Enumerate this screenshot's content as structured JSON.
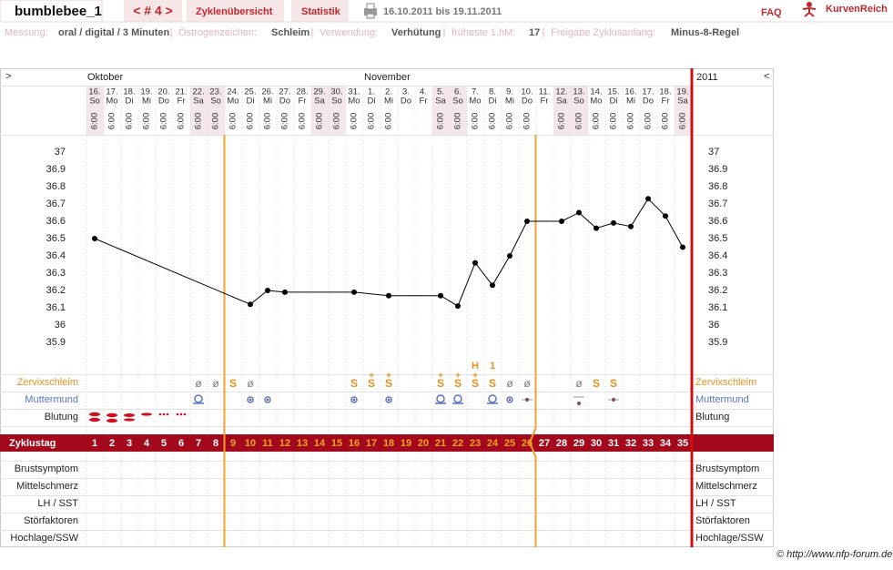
{
  "header": {
    "user": "bumblebee_1",
    "cycle_nav": "< # 4 >",
    "tabs": [
      "Zyklenübersicht",
      "Statistik"
    ],
    "date_range": "16.10.2011 bis 19.11.2011",
    "faq": "FAQ",
    "logo": "KurvenReich"
  },
  "info": [
    {
      "label": "Messung:",
      "value": "oral / digital / 3 Minuten"
    },
    {
      "label": "Östrogenzeichen:",
      "value": "Schleim"
    },
    {
      "label": "Verwendung:",
      "value": "Verhütung"
    },
    {
      "label": "früheste 1.hM:",
      "value": "17"
    },
    {
      "label": "Freigabe Zyklusanfang:",
      "value": "Minus-8-Regel"
    }
  ],
  "chart_data": {
    "type": "line",
    "nav_left": ">",
    "nav_right": "<",
    "months": [
      "Oktober",
      "November"
    ],
    "year": "2011",
    "dates": [
      "16.",
      "17.",
      "18.",
      "19.",
      "20.",
      "21.",
      "22.",
      "23.",
      "24.",
      "25.",
      "26.",
      "27.",
      "28.",
      "29.",
      "30.",
      "31.",
      "1.",
      "2.",
      "3.",
      "4.",
      "5.",
      "6.",
      "7.",
      "8.",
      "9.",
      "10.",
      "11.",
      "12.",
      "13.",
      "14.",
      "15.",
      "16.",
      "17.",
      "18.",
      "19."
    ],
    "weekdays": [
      "So",
      "Mo",
      "Di",
      "Mi",
      "Do",
      "Fr",
      "Sa",
      "So",
      "Mo",
      "Di",
      "Mi",
      "Do",
      "Fr",
      "Sa",
      "So",
      "Mo",
      "Di",
      "Mi",
      "Do",
      "Fr",
      "Sa",
      "So",
      "Mo",
      "Di",
      "Mi",
      "Do",
      "Fr",
      "Sa",
      "So",
      "Mo",
      "Di",
      "Mi",
      "Do",
      "Fr",
      "Sa"
    ],
    "times": [
      "6:00",
      "6:00",
      "6:00",
      "6:00",
      "6:00",
      "6:00",
      "6:00",
      "6:00",
      "6:00",
      "6:00",
      "6:00",
      "6:00",
      "6:00",
      "6:00",
      "6:00",
      "6:00",
      "6:00",
      "6:00",
      null,
      null,
      "6:00",
      "6:00",
      "6:00",
      "6:00",
      "6:00",
      "6:00",
      null,
      "6:00",
      "6:00",
      "6:00",
      "6:00",
      "6:00",
      "6:00",
      "6:00",
      "6:00"
    ],
    "x": [
      1,
      10,
      11,
      12,
      16,
      18,
      21,
      22,
      23,
      24,
      25,
      26,
      28,
      29,
      30,
      31,
      32,
      33,
      34,
      35
    ],
    "values": [
      36.5,
      36.12,
      36.2,
      36.19,
      36.19,
      36.17,
      36.17,
      36.11,
      36.36,
      36.23,
      36.4,
      36.6,
      36.6,
      36.65,
      36.56,
      36.59,
      36.57,
      36.73,
      36.63,
      36.45
    ],
    "color": "#000000",
    "ylim": [
      35.9,
      37
    ],
    "yticks": [
      37,
      36.9,
      36.8,
      36.7,
      36.6,
      36.5,
      36.4,
      36.3,
      36.2,
      36.1,
      36,
      35.9
    ],
    "rows_top": [
      "Zervixschleim",
      "Muttermund",
      "Blutung"
    ],
    "cycle_day_label": "Zyklustag",
    "cycle_days": [
      1,
      2,
      3,
      4,
      5,
      6,
      7,
      8,
      9,
      10,
      11,
      12,
      13,
      14,
      15,
      16,
      17,
      18,
      19,
      20,
      21,
      22,
      23,
      24,
      25,
      26,
      27,
      28,
      29,
      30,
      31,
      32,
      33,
      34,
      35
    ],
    "rows_bottom": [
      "Brustsymptom",
      "Mittelschmerz",
      "LH / SST",
      "Störfaktoren",
      "Hochlage/SSW"
    ],
    "mucus": [
      null,
      null,
      null,
      null,
      null,
      null,
      "ø",
      "ø",
      "S",
      "ø",
      null,
      null,
      null,
      null,
      null,
      "S",
      "S",
      "S",
      null,
      null,
      "S",
      "S",
      "S",
      "S",
      "ø",
      "ø",
      null,
      null,
      "ø",
      "S",
      "S",
      null,
      null,
      null,
      null
    ],
    "mucus_plus": [
      null,
      null,
      null,
      null,
      null,
      null,
      null,
      null,
      null,
      null,
      null,
      null,
      null,
      null,
      null,
      null,
      "+",
      "+",
      null,
      null,
      "+",
      "+",
      "+",
      null,
      null,
      null,
      null,
      null,
      null,
      null,
      null,
      null,
      null,
      null,
      null
    ],
    "peak": [
      null,
      null,
      null,
      null,
      null,
      null,
      null,
      null,
      null,
      null,
      null,
      null,
      null,
      null,
      null,
      null,
      null,
      null,
      null,
      null,
      null,
      null,
      "H",
      "1",
      null,
      null,
      null,
      null,
      null,
      null,
      null,
      null,
      null,
      null,
      null
    ]
  },
  "footer": "© http://www.nfp-forum.de"
}
